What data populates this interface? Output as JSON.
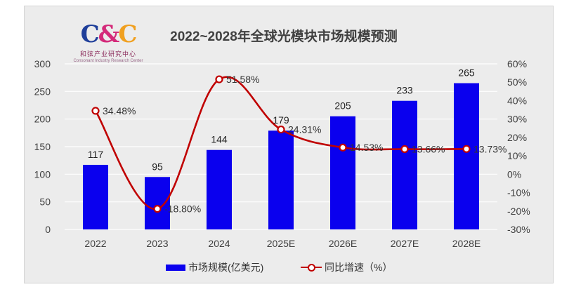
{
  "logo": {
    "mark": "C&C",
    "cn": "和弦产业研究中心",
    "en": "Consonant Industry Research Center"
  },
  "colors": {
    "bar": "#0a00ee",
    "line": "#c00000",
    "marker_fill": "#ffffff",
    "grid": "#ffffff",
    "text": "#404040"
  },
  "chart_data": {
    "type": "bar",
    "title": "2022~2028年全球光模块市场规模预测",
    "categories": [
      "2022",
      "2023",
      "2024",
      "2025E",
      "2026E",
      "2027E",
      "2028E"
    ],
    "series": [
      {
        "name": "市场规模(亿美元)",
        "type": "bar",
        "axis": "left",
        "values": [
          117,
          95,
          144,
          179,
          205,
          233,
          265
        ],
        "labels": [
          "117",
          "95",
          "144",
          "179",
          "205",
          "233",
          "265"
        ]
      },
      {
        "name": "同比增速（%）",
        "type": "line",
        "axis": "right",
        "smooth": true,
        "values": [
          34.48,
          -18.8,
          51.58,
          24.31,
          14.53,
          13.66,
          13.73
        ],
        "labels": [
          "34.48%",
          "-18.80%",
          "51.58%",
          "24.31%",
          "14.53%",
          "13.66%",
          "13.73%"
        ]
      }
    ],
    "y_left": {
      "min": 0,
      "max": 300,
      "ticks": [
        0,
        50,
        100,
        150,
        200,
        250,
        300
      ]
    },
    "y_right": {
      "min": -30,
      "max": 60,
      "ticks": [
        -30,
        -20,
        -10,
        0,
        10,
        20,
        30,
        40,
        50,
        60
      ],
      "tick_labels": [
        "-30%",
        "-20%",
        "-10%",
        "0%",
        "10%",
        "20%",
        "30%",
        "40%",
        "50%",
        "60%"
      ]
    },
    "grid": true,
    "legend_position": "bottom"
  }
}
